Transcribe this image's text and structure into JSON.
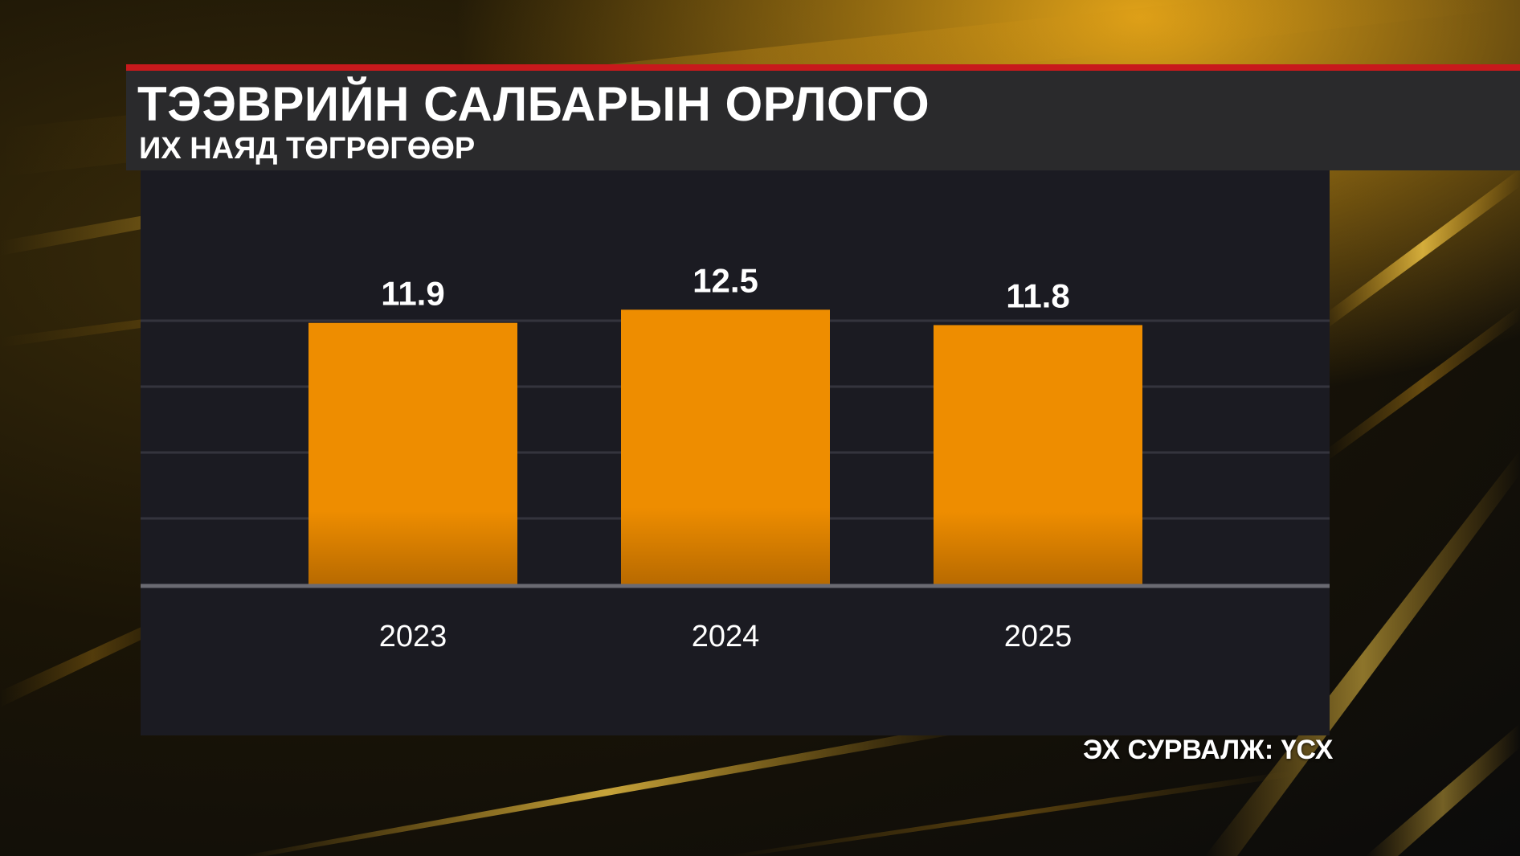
{
  "colors": {
    "accent_bar": "#ee8d00",
    "title_rule": "#c8191c",
    "panel_bg": "#1b1b22",
    "header_bg": "#2a2a2c",
    "background_glow": "#f2b01e"
  },
  "header": {
    "title": "ТЭЭВРИЙН САЛБАРЫН ОРЛОГО",
    "subtitle": "ИХ НАЯД ТӨГРӨГӨӨР"
  },
  "footer": {
    "source": "ЭХ СУРВАЛЖ: ҮСХ"
  },
  "chart_data": {
    "type": "bar",
    "title": "ТЭЭВРИЙН САЛБАРЫН ОРЛОГО",
    "subtitle": "ИХ НАЯД ТӨГРӨГӨӨР",
    "xlabel": "",
    "ylabel": "",
    "categories": [
      "2023",
      "2024",
      "2025"
    ],
    "values": [
      11.9,
      12.5,
      11.8
    ],
    "value_labels": [
      "11.9",
      "12.5",
      "11.8"
    ],
    "ylim": [
      0,
      15
    ],
    "grid": true,
    "legend": "none"
  }
}
